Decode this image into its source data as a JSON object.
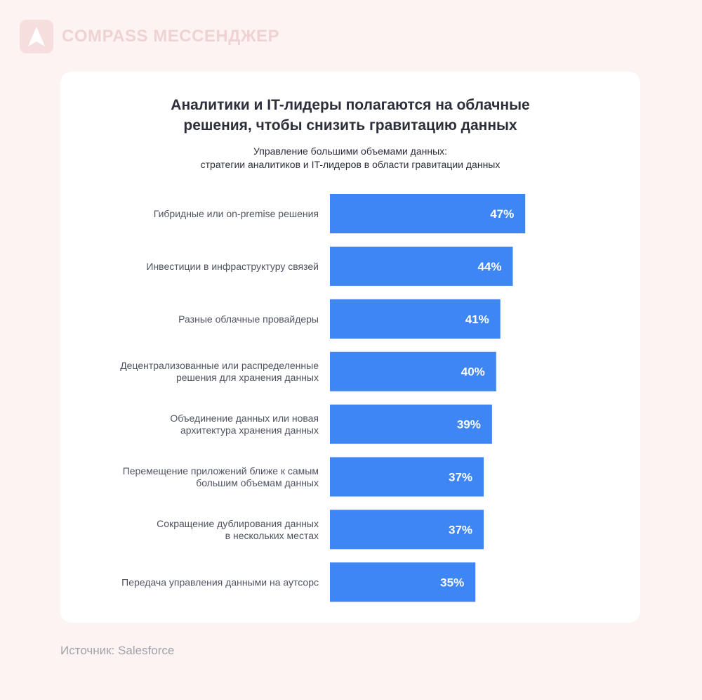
{
  "brand": {
    "name": "COMPASS МЕССЕНДЖЕР",
    "logo_icon": "compass-arrow-icon",
    "color": "#efd3d3"
  },
  "source": "Источник: Salesforce",
  "chart_data": {
    "type": "bar",
    "orientation": "horizontal",
    "title_lines": [
      "Аналитики и IT-лидеры полагаются на облачные",
      "решения, чтобы снизить гравитацию данных"
    ],
    "subtitle_lines": [
      "Управление большими объемами данных:",
      "стратегии аналитиков и IT-лидеров в области гравитации данных"
    ],
    "categories": [
      [
        "Гибридные или on-premise решения"
      ],
      [
        "Инвестиции в инфраструктуру связей"
      ],
      [
        "Разные облачные провайдеры"
      ],
      [
        "Децентрализованные или распределенные",
        "решения для хранения данных"
      ],
      [
        "Объединение данных или новая",
        "архитектура хранения данных"
      ],
      [
        "Перемещение приложений ближе к самым",
        "большим объемам данных"
      ],
      [
        "Сокращение дублирования данных",
        "в нескольких местах"
      ],
      [
        "Передача управления данными на аутсорс"
      ]
    ],
    "values": [
      47,
      44,
      41,
      40,
      39,
      37,
      37,
      35
    ],
    "value_labels": [
      "47%",
      "44%",
      "41%",
      "40%",
      "39%",
      "37%",
      "37%",
      "35%"
    ],
    "unit": "%",
    "xlim": [
      0,
      100
    ],
    "bar_color": "#3f86f5",
    "grid": false,
    "legend": "none"
  }
}
